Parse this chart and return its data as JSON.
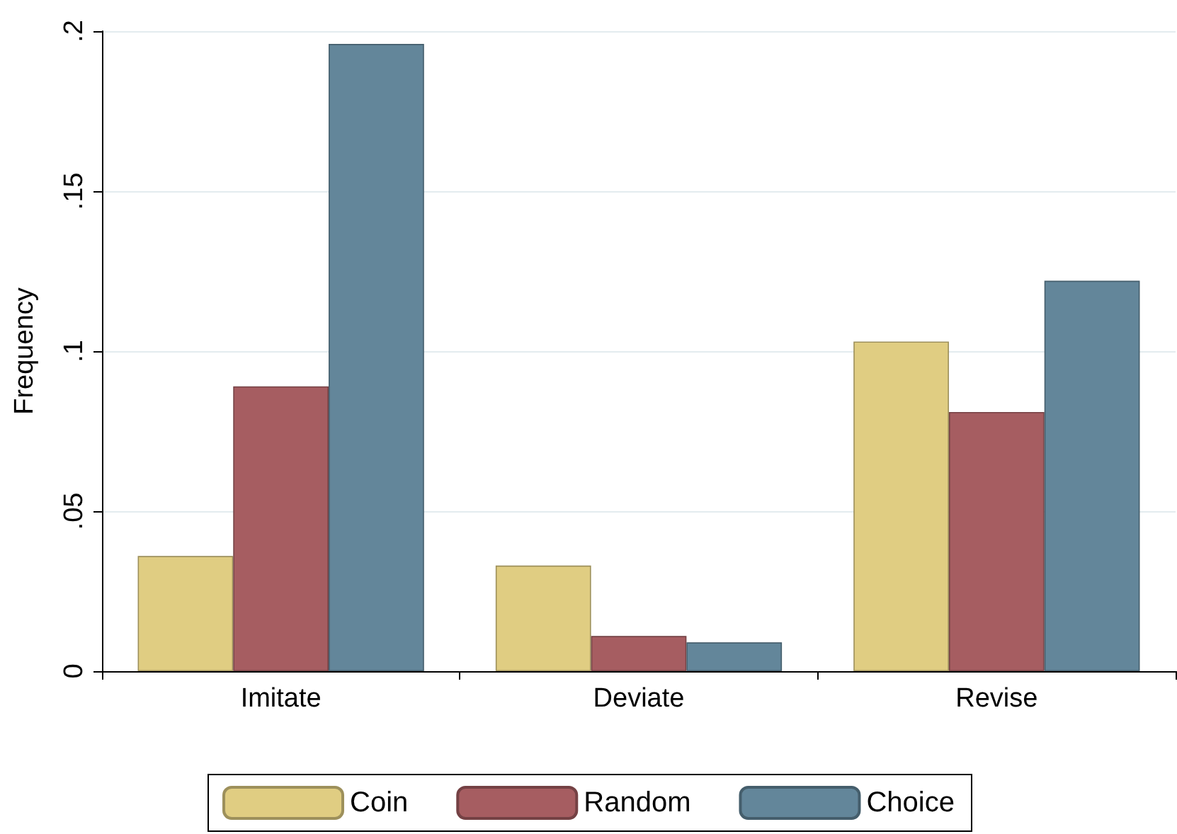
{
  "chart_data": {
    "type": "bar",
    "ylabel": "Frequency",
    "categories": [
      "Imitate",
      "Deviate",
      "Revise"
    ],
    "series": [
      {
        "name": "Coin",
        "color": "#e0cd82",
        "values": [
          0.036,
          0.033,
          0.103
        ]
      },
      {
        "name": "Random",
        "color": "#a65d61",
        "values": [
          0.089,
          0.011,
          0.081
        ]
      },
      {
        "name": "Choice",
        "color": "#63869a",
        "values": [
          0.196,
          0.009,
          0.122
        ]
      }
    ],
    "ylim": [
      0,
      0.2
    ],
    "yticks": [
      {
        "value": 0,
        "label": "0"
      },
      {
        "value": 0.05,
        "label": ".05"
      },
      {
        "value": 0.1,
        "label": ".1"
      },
      {
        "value": 0.15,
        "label": ".15"
      },
      {
        "value": 0.2,
        "label": ".2"
      }
    ],
    "grid": "y",
    "legend": "bottom"
  }
}
